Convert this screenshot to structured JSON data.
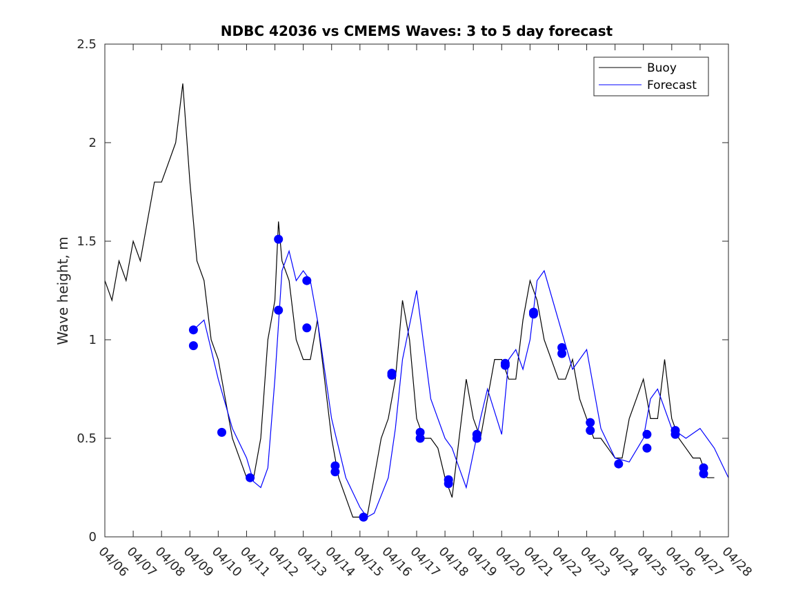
{
  "chart_data": {
    "type": "line",
    "title": "NDBC 42036 vs CMEMS Waves: 3 to 5 day forecast",
    "xlabel": "",
    "ylabel": "Wave height, m",
    "xlim": [
      "04/06",
      "04/28"
    ],
    "ylim": [
      0,
      2.5
    ],
    "x_ticks": [
      "04/06",
      "04/07",
      "04/08",
      "04/09",
      "04/10",
      "04/11",
      "04/12",
      "04/13",
      "04/14",
      "04/15",
      "04/16",
      "04/17",
      "04/18",
      "04/19",
      "04/20",
      "04/21",
      "04/22",
      "04/23",
      "04/24",
      "04/25",
      "04/26",
      "04/27",
      "04/28"
    ],
    "y_ticks": [
      "0",
      "0.5",
      "1",
      "1.5",
      "2",
      "2.5"
    ],
    "grid": false,
    "legend_placement": "top-right",
    "colors": {
      "buoy": "#000000",
      "forecast": "#0000ff",
      "axes": "#262626"
    },
    "series": [
      {
        "name": "Buoy",
        "x": [
          "04/06 00:00",
          "04/06 06:00",
          "04/06 12:00",
          "04/06 18:00",
          "04/07 00:00",
          "04/07 06:00",
          "04/07 12:00",
          "04/07 18:00",
          "04/08 00:00",
          "04/08 06:00",
          "04/08 12:00",
          "04/08 18:00",
          "04/09 00:00",
          "04/09 06:00",
          "04/09 12:00",
          "04/09 18:00",
          "04/10 00:00",
          "04/10 06:00",
          "04/10 12:00",
          "04/10 18:00",
          "04/11 00:00",
          "04/11 06:00",
          "04/11 12:00",
          "04/11 18:00",
          "04/12 00:00",
          "04/12 03:00",
          "04/12 06:00",
          "04/12 12:00",
          "04/12 18:00",
          "04/13 00:00",
          "04/13 06:00",
          "04/13 12:00",
          "04/13 18:00",
          "04/14 00:00",
          "04/14 06:00",
          "04/14 12:00",
          "04/14 18:00",
          "04/15 00:00",
          "04/15 06:00",
          "04/15 12:00",
          "04/15 18:00",
          "04/16 00:00",
          "04/16 06:00",
          "04/16 12:00",
          "04/16 18:00",
          "04/17 00:00",
          "04/17 06:00",
          "04/17 12:00",
          "04/17 18:00",
          "04/18 00:00",
          "04/18 06:00",
          "04/18 12:00",
          "04/18 18:00",
          "04/19 00:00",
          "04/19 06:00",
          "04/19 12:00",
          "04/19 18:00",
          "04/20 00:00",
          "04/20 06:00",
          "04/20 12:00",
          "04/20 18:00",
          "04/21 00:00",
          "04/21 06:00",
          "04/21 12:00",
          "04/21 18:00",
          "04/22 00:00",
          "04/22 06:00",
          "04/22 12:00",
          "04/22 18:00",
          "04/23 00:00",
          "04/23 06:00",
          "04/23 12:00",
          "04/23 18:00",
          "04/24 00:00",
          "04/24 06:00",
          "04/24 12:00",
          "04/24 18:00",
          "04/25 00:00",
          "04/25 06:00",
          "04/25 12:00",
          "04/25 18:00",
          "04/26 00:00",
          "04/26 06:00",
          "04/26 12:00",
          "04/26 18:00",
          "04/27 00:00",
          "04/27 06:00",
          "04/27 12:00"
        ],
        "values": [
          1.3,
          1.2,
          1.4,
          1.3,
          1.5,
          1.4,
          1.6,
          1.8,
          1.8,
          1.9,
          2.0,
          2.3,
          1.8,
          1.4,
          1.3,
          1.0,
          0.9,
          0.7,
          0.5,
          0.4,
          0.3,
          0.3,
          0.5,
          1.0,
          1.2,
          1.6,
          1.4,
          1.3,
          1.0,
          0.9,
          0.9,
          1.1,
          0.8,
          0.5,
          0.3,
          0.2,
          0.1,
          0.1,
          0.1,
          0.3,
          0.5,
          0.6,
          0.8,
          1.2,
          1.0,
          0.6,
          0.5,
          0.5,
          0.45,
          0.3,
          0.2,
          0.5,
          0.8,
          0.6,
          0.5,
          0.7,
          0.9,
          0.9,
          0.8,
          0.8,
          1.1,
          1.3,
          1.2,
          1.0,
          0.9,
          0.8,
          0.8,
          0.9,
          0.7,
          0.6,
          0.5,
          0.5,
          0.45,
          0.4,
          0.4,
          0.6,
          0.7,
          0.8,
          0.6,
          0.6,
          0.9,
          0.6,
          0.5,
          0.45,
          0.4,
          0.4,
          0.3,
          0.3
        ]
      },
      {
        "name": "Forecast",
        "x": [
          "04/09 03:00",
          "04/09 12:00",
          "04/10 00:00",
          "04/10 12:00",
          "04/11 00:00",
          "04/11 06:00",
          "04/11 12:00",
          "04/11 18:00",
          "04/12 00:00",
          "04/12 06:00",
          "04/12 12:00",
          "04/12 18:00",
          "04/13 00:00",
          "04/13 06:00",
          "04/13 12:00",
          "04/14 00:00",
          "04/14 12:00",
          "04/15 00:00",
          "04/15 06:00",
          "04/15 12:00",
          "04/16 00:00",
          "04/16 06:00",
          "04/16 12:00",
          "04/17 00:00",
          "04/17 12:00",
          "04/18 00:00",
          "04/18 06:00",
          "04/18 12:00",
          "04/18 18:00",
          "04/19 06:00",
          "04/19 12:00",
          "04/20 00:00",
          "04/20 06:00",
          "04/20 12:00",
          "04/20 18:00",
          "04/21 00:00",
          "04/21 06:00",
          "04/21 12:00",
          "04/22 00:00",
          "04/22 12:00",
          "04/23 00:00",
          "04/23 12:00",
          "04/24 00:00",
          "04/24 12:00",
          "04/25 00:00",
          "04/25 06:00",
          "04/25 12:00",
          "04/26 00:00",
          "04/26 12:00",
          "04/27 00:00",
          "04/27 12:00",
          "04/28 00:00"
        ],
        "values": [
          1.05,
          1.1,
          0.8,
          0.55,
          0.4,
          0.28,
          0.25,
          0.35,
          0.8,
          1.35,
          1.45,
          1.3,
          1.35,
          1.3,
          1.1,
          0.6,
          0.3,
          0.15,
          0.1,
          0.12,
          0.3,
          0.55,
          0.9,
          1.25,
          0.7,
          0.5,
          0.45,
          0.35,
          0.25,
          0.6,
          0.75,
          0.52,
          0.9,
          0.95,
          0.85,
          1.0,
          1.3,
          1.35,
          1.1,
          0.85,
          0.95,
          0.55,
          0.4,
          0.38,
          0.5,
          0.7,
          0.75,
          0.55,
          0.5,
          0.55,
          0.45,
          0.3
        ]
      }
    ],
    "forecast_points": {
      "x": [
        "04/09 03:00",
        "04/09 03:00",
        "04/10 03:00",
        "04/11 03:00",
        "04/12 03:00",
        "04/12 03:00",
        "04/13 03:00",
        "04/13 03:00",
        "04/14 03:00",
        "04/14 03:00",
        "04/15 03:00",
        "04/16 03:00",
        "04/16 03:00",
        "04/17 03:00",
        "04/17 03:00",
        "04/18 03:00",
        "04/18 03:00",
        "04/19 03:00",
        "04/19 03:00",
        "04/20 03:00",
        "04/20 03:00",
        "04/21 03:00",
        "04/21 03:00",
        "04/22 03:00",
        "04/22 03:00",
        "04/23 03:00",
        "04/23 03:00",
        "04/24 03:00",
        "04/25 03:00",
        "04/25 03:00",
        "04/26 03:00",
        "04/26 03:00",
        "04/27 03:00",
        "04/27 03:00"
      ],
      "values": [
        1.05,
        0.97,
        0.53,
        0.3,
        1.51,
        1.15,
        1.3,
        1.06,
        0.36,
        0.33,
        0.1,
        0.83,
        0.82,
        0.53,
        0.5,
        0.29,
        0.27,
        0.52,
        0.5,
        0.88,
        0.87,
        1.14,
        1.13,
        0.96,
        0.93,
        0.58,
        0.54,
        0.37,
        0.52,
        0.45,
        0.54,
        0.52,
        0.35,
        0.32
      ]
    }
  }
}
